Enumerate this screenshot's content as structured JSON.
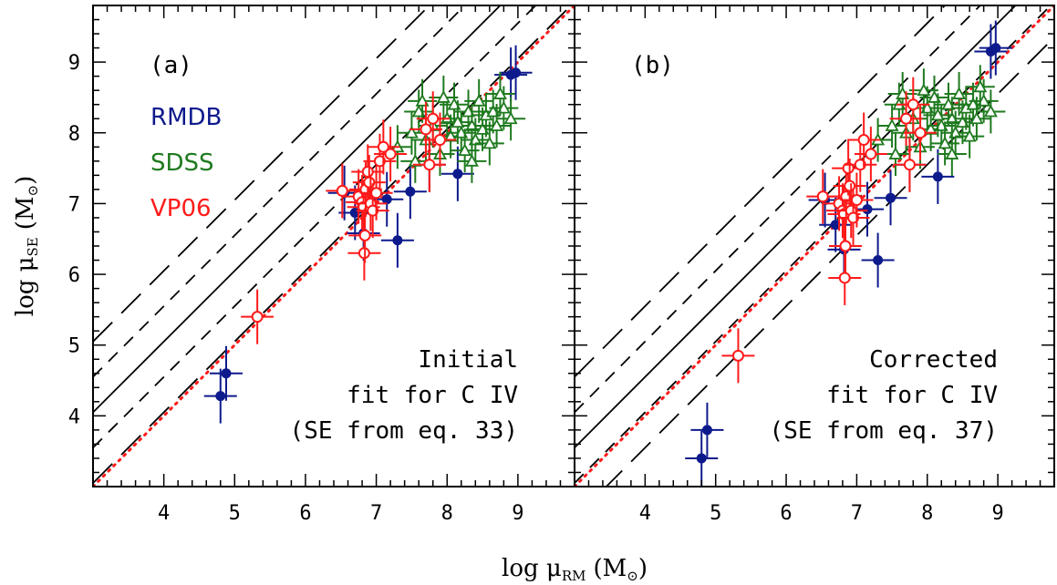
{
  "figure": {
    "xlabel": "log μ",
    "xlabel_sub": "RM",
    "xlabel_unit": "(M",
    "xlabel_unit_sub": "⊙",
    "xlabel_unit_close": ")",
    "ylabel": "log μ",
    "ylabel_sub": "SE",
    "ylabel_unit": "(M",
    "ylabel_unit_sub": "⊙",
    "ylabel_unit_close": ")"
  },
  "legend": [
    {
      "label": "RMDB",
      "color": "#0d1a8c"
    },
    {
      "label": "SDSS",
      "color": "#1f7a1f"
    },
    {
      "label": "VP06",
      "color": "#ff1a1a"
    }
  ],
  "colors": {
    "rmdb": "#0d1a8c",
    "sdss": "#1f7a1f",
    "vp06": "#ff1a1a",
    "frame": "#000000",
    "dotted": "#ff1a1a"
  },
  "chart_data": [
    {
      "type": "scatter",
      "panel_label": "(a)",
      "annotation": [
        "Initial",
        "fit for C IV",
        "(SE from eq. 33)"
      ],
      "xlim": [
        3.0,
        9.8
      ],
      "ylim": [
        3.0,
        9.8
      ],
      "xticks": [
        4,
        5,
        6,
        7,
        8,
        9
      ],
      "yticks": [
        4,
        5,
        6,
        7,
        8,
        9
      ],
      "lines": {
        "fit_intercept": 1.05,
        "fit_slope": 1.0,
        "dash_inner": 0.5,
        "dash_outer": 1.0,
        "one_to_one": true
      },
      "series": [
        {
          "name": "RMDB",
          "points": [
            [
              4.8,
              4.28
            ],
            [
              4.88,
              4.6
            ],
            [
              6.55,
              7.15
            ],
            [
              6.7,
              6.87
            ],
            [
              6.82,
              6.58
            ],
            [
              7.15,
              7.06
            ],
            [
              7.3,
              6.48
            ],
            [
              7.48,
              7.17
            ],
            [
              7.75,
              7.55
            ],
            [
              8.15,
              7.42
            ],
            [
              8.9,
              8.82
            ],
            [
              8.97,
              8.85
            ]
          ]
        },
        {
          "name": "SDSS",
          "points": [
            [
              7.3,
              7.8
            ],
            [
              7.5,
              8.0
            ],
            [
              7.6,
              8.3
            ],
            [
              7.7,
              7.9
            ],
            [
              7.8,
              8.1
            ],
            [
              7.9,
              7.7
            ],
            [
              8.0,
              8.2
            ],
            [
              8.05,
              7.95
            ],
            [
              8.1,
              8.4
            ],
            [
              8.2,
              8.0
            ],
            [
              8.25,
              7.75
            ],
            [
              8.3,
              8.3
            ],
            [
              8.35,
              8.1
            ],
            [
              8.4,
              7.9
            ],
            [
              8.45,
              8.45
            ],
            [
              8.5,
              8.05
            ],
            [
              8.55,
              8.25
            ],
            [
              8.6,
              7.85
            ],
            [
              8.65,
              8.3
            ],
            [
              8.7,
              8.1
            ],
            [
              8.8,
              8.35
            ],
            [
              8.9,
              8.2
            ],
            [
              7.55,
              7.6
            ],
            [
              7.65,
              8.45
            ],
            [
              7.95,
              8.5
            ],
            [
              8.15,
              8.15
            ],
            [
              8.35,
              7.6
            ],
            [
              8.75,
              8.55
            ]
          ]
        },
        {
          "name": "VP06",
          "points": [
            [
              5.32,
              5.4
            ],
            [
              6.52,
              7.18
            ],
            [
              6.75,
              7.1
            ],
            [
              6.8,
              7.02
            ],
            [
              6.82,
              6.95
            ],
            [
              6.85,
              7.2
            ],
            [
              6.88,
              7.45
            ],
            [
              6.9,
              7.3
            ],
            [
              6.92,
              7.0
            ],
            [
              6.95,
              6.9
            ],
            [
              7.0,
              7.15
            ],
            [
              7.05,
              7.6
            ],
            [
              7.1,
              7.8
            ],
            [
              6.83,
              6.3
            ],
            [
              6.84,
              6.55
            ],
            [
              7.2,
              7.7
            ],
            [
              7.75,
              7.55
            ],
            [
              7.8,
              8.2
            ],
            [
              7.9,
              7.9
            ],
            [
              7.7,
              8.05
            ]
          ]
        }
      ]
    },
    {
      "type": "scatter",
      "panel_label": "(b)",
      "annotation": [
        "Corrected",
        "fit for C IV",
        "(SE from eq. 37)"
      ],
      "xlim": [
        3.0,
        9.8
      ],
      "ylim": [
        3.0,
        9.8
      ],
      "xticks": [
        4,
        5,
        6,
        7,
        8,
        9
      ],
      "yticks": [
        4,
        5,
        6,
        7,
        8,
        9
      ],
      "lines": {
        "fit_intercept": 0.55,
        "fit_slope": 1.0,
        "dash_inner": 0.5,
        "dash_outer": 1.0,
        "one_to_one": true
      },
      "series": [
        {
          "name": "RMDB",
          "points": [
            [
              4.8,
              3.4
            ],
            [
              4.88,
              3.8
            ],
            [
              6.55,
              7.05
            ],
            [
              6.7,
              6.7
            ],
            [
              6.82,
              6.35
            ],
            [
              7.15,
              6.92
            ],
            [
              7.3,
              6.2
            ],
            [
              7.48,
              7.08
            ],
            [
              7.75,
              7.55
            ],
            [
              8.15,
              7.38
            ],
            [
              8.9,
              9.15
            ],
            [
              8.97,
              9.2
            ]
          ]
        },
        {
          "name": "SDSS",
          "points": [
            [
              7.3,
              7.9
            ],
            [
              7.5,
              8.1
            ],
            [
              7.6,
              8.4
            ],
            [
              7.7,
              8.0
            ],
            [
              7.8,
              8.2
            ],
            [
              7.9,
              7.8
            ],
            [
              8.0,
              8.35
            ],
            [
              8.05,
              8.05
            ],
            [
              8.1,
              8.5
            ],
            [
              8.2,
              8.1
            ],
            [
              8.25,
              7.85
            ],
            [
              8.3,
              8.4
            ],
            [
              8.35,
              8.2
            ],
            [
              8.4,
              8.0
            ],
            [
              8.45,
              8.55
            ],
            [
              8.5,
              8.15
            ],
            [
              8.55,
              8.35
            ],
            [
              8.6,
              7.95
            ],
            [
              8.65,
              8.4
            ],
            [
              8.7,
              8.2
            ],
            [
              8.8,
              8.45
            ],
            [
              8.9,
              8.3
            ],
            [
              7.55,
              7.7
            ],
            [
              7.65,
              8.55
            ],
            [
              7.95,
              8.6
            ],
            [
              8.15,
              8.25
            ],
            [
              8.35,
              7.7
            ],
            [
              8.75,
              8.65
            ]
          ]
        },
        {
          "name": "VP06",
          "points": [
            [
              5.32,
              4.85
            ],
            [
              6.52,
              7.1
            ],
            [
              6.75,
              7.0
            ],
            [
              6.8,
              6.9
            ],
            [
              6.82,
              6.85
            ],
            [
              6.85,
              7.1
            ],
            [
              6.88,
              7.5
            ],
            [
              6.9,
              7.25
            ],
            [
              6.92,
              6.9
            ],
            [
              6.95,
              6.8
            ],
            [
              7.0,
              7.05
            ],
            [
              7.05,
              7.55
            ],
            [
              7.1,
              7.9
            ],
            [
              6.83,
              5.95
            ],
            [
              6.84,
              6.4
            ],
            [
              7.2,
              7.7
            ],
            [
              7.75,
              7.55
            ],
            [
              7.8,
              8.4
            ],
            [
              7.9,
              8.0
            ],
            [
              7.7,
              8.2
            ]
          ]
        }
      ]
    }
  ]
}
